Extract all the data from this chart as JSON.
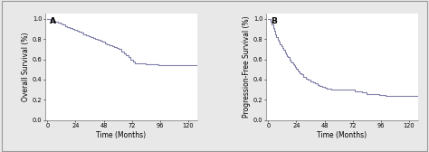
{
  "panel_A": {
    "label": "A",
    "xlabel": "Time (Months)",
    "ylabel": "Overall Survival (%)",
    "xlim": [
      -2,
      128
    ],
    "ylim": [
      0.0,
      1.05
    ],
    "xticks": [
      0,
      24,
      48,
      72,
      96,
      120
    ],
    "yticks": [
      0.0,
      0.2,
      0.4,
      0.6,
      0.8,
      1.0
    ],
    "curve_color": "#8080aa",
    "times": [
      0,
      3,
      5,
      7,
      9,
      11,
      13,
      15,
      17,
      19,
      21,
      23,
      25,
      27,
      29,
      31,
      33,
      35,
      37,
      39,
      41,
      43,
      45,
      47,
      49,
      51,
      53,
      55,
      57,
      59,
      61,
      63,
      65,
      67,
      69,
      71,
      73,
      75,
      84,
      90,
      95,
      100,
      110,
      120
    ],
    "survival": [
      1.0,
      0.99,
      0.98,
      0.97,
      0.96,
      0.95,
      0.94,
      0.93,
      0.92,
      0.91,
      0.9,
      0.89,
      0.88,
      0.87,
      0.86,
      0.85,
      0.84,
      0.83,
      0.82,
      0.81,
      0.8,
      0.79,
      0.78,
      0.77,
      0.76,
      0.75,
      0.74,
      0.73,
      0.72,
      0.71,
      0.7,
      0.68,
      0.66,
      0.64,
      0.62,
      0.6,
      0.58,
      0.56,
      0.55,
      0.55,
      0.54,
      0.54,
      0.54,
      0.54
    ]
  },
  "panel_B": {
    "label": "B",
    "xlabel": "Time (Months)",
    "ylabel": "Progression-Free Survival (%)",
    "xlim": [
      -2,
      128
    ],
    "ylim": [
      0.0,
      1.05
    ],
    "xticks": [
      0,
      24,
      48,
      72,
      96,
      120
    ],
    "yticks": [
      0.0,
      0.2,
      0.4,
      0.6,
      0.8,
      1.0
    ],
    "curve_color": "#8080aa",
    "times": [
      0,
      2,
      3,
      4,
      5,
      6,
      7,
      8,
      9,
      10,
      11,
      12,
      13,
      14,
      15,
      16,
      17,
      18,
      19,
      20,
      21,
      22,
      23,
      24,
      25,
      26,
      27,
      28,
      30,
      32,
      34,
      36,
      38,
      40,
      42,
      44,
      46,
      48,
      50,
      52,
      54,
      56,
      58,
      60,
      62,
      64,
      66,
      68,
      70,
      72,
      74,
      80,
      84,
      90,
      95,
      97,
      100,
      106,
      110,
      120
    ],
    "survival": [
      1.0,
      0.97,
      0.94,
      0.91,
      0.88,
      0.85,
      0.82,
      0.79,
      0.77,
      0.75,
      0.73,
      0.71,
      0.69,
      0.67,
      0.65,
      0.63,
      0.62,
      0.6,
      0.58,
      0.57,
      0.55,
      0.54,
      0.52,
      0.51,
      0.49,
      0.48,
      0.46,
      0.45,
      0.43,
      0.41,
      0.4,
      0.38,
      0.37,
      0.36,
      0.35,
      0.34,
      0.33,
      0.32,
      0.31,
      0.31,
      0.3,
      0.3,
      0.3,
      0.3,
      0.3,
      0.3,
      0.3,
      0.3,
      0.3,
      0.3,
      0.28,
      0.27,
      0.26,
      0.26,
      0.25,
      0.25,
      0.24,
      0.24,
      0.24,
      0.24
    ]
  },
  "fig_background": "#e8e8e8",
  "plot_background": "#ffffff",
  "border_color": "#aaaaaa",
  "line_width": 0.8,
  "tick_fontsize": 4.8,
  "label_fontsize": 5.5,
  "panel_label_fontsize": 6.5
}
